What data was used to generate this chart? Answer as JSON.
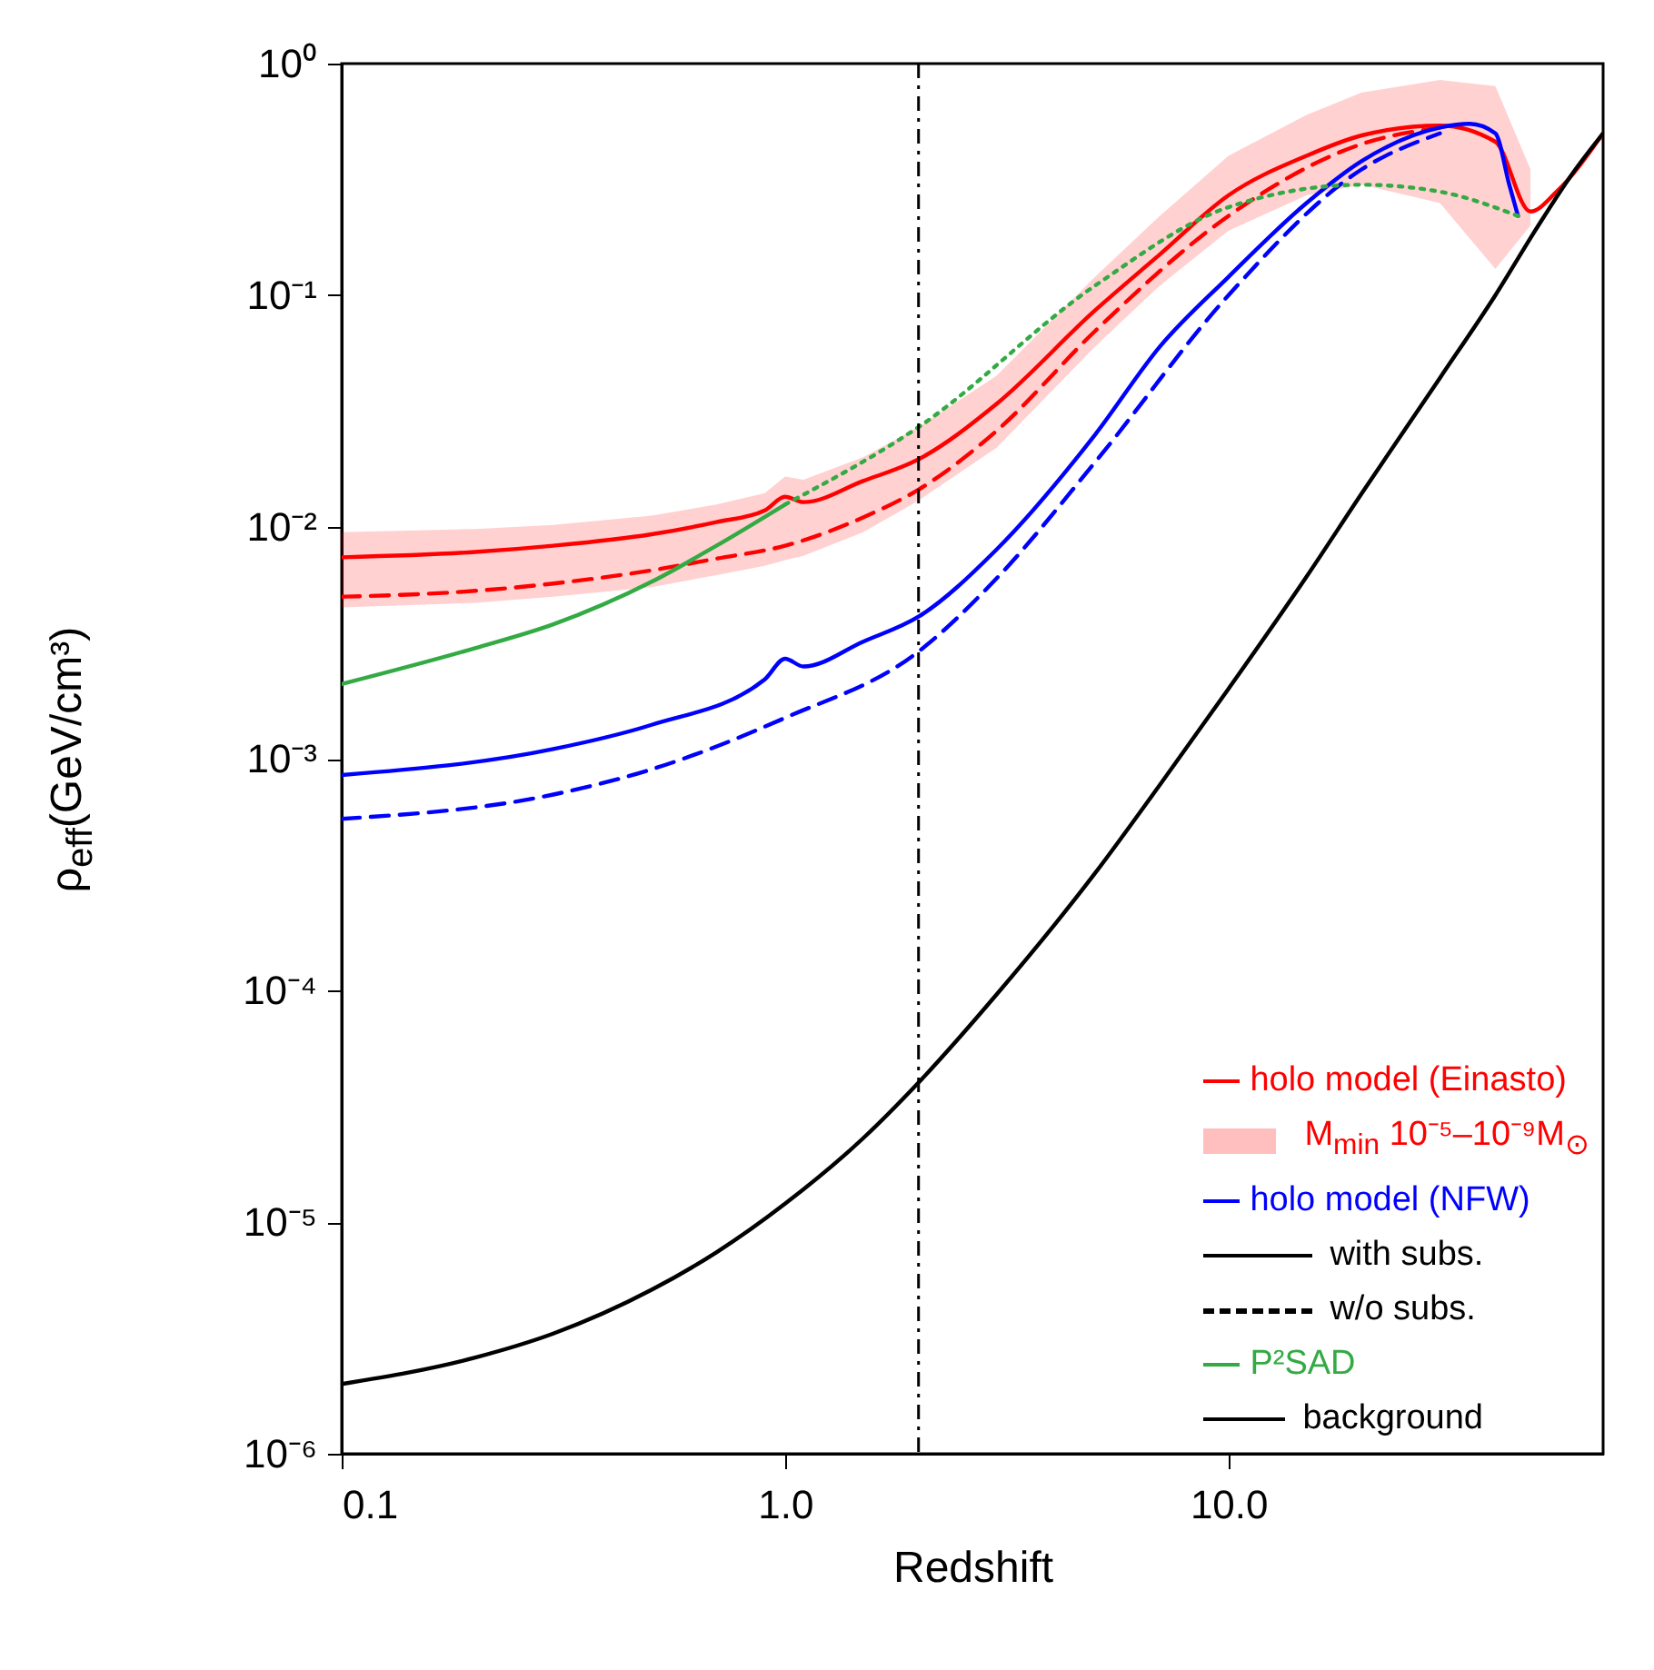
{
  "chart_data": {
    "type": "line",
    "xlabel": "Redshift",
    "ylabel": "ρ$_{eff}$(GeV/cm³)",
    "log": "xy",
    "legend": "bottom right",
    "xlim": [
      0.1,
      70
    ],
    "ylim": [
      1e-06,
      1
    ],
    "xticks": [
      {
        "value": 0.1,
        "label": "0.1"
      },
      {
        "value": 1,
        "label": "1.0"
      },
      {
        "value": 10,
        "label": "10.0"
      }
    ],
    "yticks": [
      {
        "value": 1e-06,
        "label": "10⁻⁶"
      },
      {
        "value": 1e-05,
        "label": "10⁻⁵"
      },
      {
        "value": 0.0001,
        "label": "10⁻⁴"
      },
      {
        "value": 0.001,
        "label": "10⁻³"
      },
      {
        "value": 0.01,
        "label": "10⁻²"
      },
      {
        "value": 0.1,
        "label": "10⁻¹"
      },
      {
        "value": 1,
        "label": "10⁰"
      }
    ],
    "ref_lines": [
      {
        "axis": "x",
        "value": 2,
        "line_style": "dashdot"
      }
    ],
    "annotations": [
      "M$_{min}$ 10⁻⁵–10⁻⁹M$_{⊙}$",
      "with subs.",
      "w/o subs."
    ],
    "series": [
      {
        "name": "holo model (Einasto)",
        "color": "#ff0000",
        "line_style": "solid",
        "x": [
          0.1,
          0.2,
          0.3,
          0.5,
          0.7,
          0.9,
          1.0,
          1.1,
          1.5,
          2,
          3,
          5,
          7,
          10,
          15,
          20,
          30,
          40,
          48,
          55,
          70
        ],
        "values": [
          0.0074,
          0.0078,
          0.0083,
          0.0093,
          0.0105,
          0.0118,
          0.0135,
          0.0128,
          0.0158,
          0.0196,
          0.034,
          0.086,
          0.15,
          0.27,
          0.4,
          0.49,
          0.54,
          0.46,
          0.23,
          0.28,
          0.5
        ],
        "lower": [
          0.0045,
          0.0047,
          0.005,
          0.0055,
          0.0062,
          0.0068,
          0.0072,
          0.0075,
          0.0095,
          0.013,
          0.022,
          0.06,
          0.11,
          0.19,
          0.27,
          0.3,
          0.25,
          0.13,
          0.2,
          null,
          null
        ],
        "upper": [
          0.0095,
          0.0098,
          0.0102,
          0.0112,
          0.0125,
          0.014,
          0.0165,
          0.016,
          0.02,
          0.027,
          0.045,
          0.12,
          0.22,
          0.4,
          0.6,
          0.75,
          0.85,
          0.8,
          0.35,
          null,
          null
        ]
      },
      {
        "color": "#ff0000",
        "line_style": "dashed",
        "x": [
          0.1,
          0.2,
          0.3,
          0.5,
          0.7,
          1,
          1.5,
          2,
          3,
          5,
          10,
          20,
          30
        ],
        "values": [
          0.005,
          0.0053,
          0.0057,
          0.0065,
          0.0073,
          0.0083,
          0.011,
          0.0145,
          0.026,
          0.07,
          0.22,
          0.45,
          0.53
        ]
      },
      {
        "name": "holo model (NFW)",
        "color": "#0000ff",
        "line_style": "solid",
        "x": [
          0.1,
          0.3,
          0.5,
          0.9,
          1.0,
          1.1,
          1.5,
          2,
          3,
          5,
          7,
          10,
          15,
          20,
          30,
          35,
          40,
          43,
          45
        ],
        "values": [
          0.00085,
          0.0011,
          0.0014,
          0.0022,
          0.0027,
          0.0025,
          0.0032,
          0.0041,
          0.008,
          0.025,
          0.06,
          0.12,
          0.25,
          0.38,
          0.53,
          0.55,
          0.5,
          0.3,
          0.22
        ]
      },
      {
        "color": "#0000ff",
        "line_style": "dashed",
        "x": [
          0.1,
          0.3,
          0.5,
          1,
          2,
          3,
          5,
          10,
          20,
          30
        ],
        "values": [
          0.00055,
          0.0007,
          0.0009,
          0.0015,
          0.0029,
          0.006,
          0.019,
          0.1,
          0.35,
          0.5
        ]
      },
      {
        "name": "P²SAD",
        "color": "#33aa44",
        "line_style": "solid",
        "x": [
          0.1,
          0.2,
          0.3,
          0.5,
          0.7,
          1
        ],
        "values": [
          0.0021,
          0.003,
          0.0038,
          0.0058,
          0.0083,
          0.0125
        ]
      },
      {
        "color": "#33aa44",
        "line_style": "dotted",
        "x": [
          1,
          2,
          5,
          10,
          20,
          30,
          45
        ],
        "values": [
          0.0125,
          0.027,
          0.11,
          0.24,
          0.3,
          0.28,
          0.22
        ]
      },
      {
        "name": "background",
        "color": "#000000",
        "line_style": "solid",
        "x": [
          0.1,
          0.2,
          0.3,
          0.5,
          0.7,
          1,
          1.5,
          2,
          3,
          5,
          7,
          10,
          15,
          20,
          30,
          40,
          50,
          60,
          70
        ],
        "values": [
          2e-06,
          2.6e-06,
          3.3e-06,
          5.1e-06,
          7.4e-06,
          1.2e-05,
          2.3e-05,
          4e-05,
          9.6e-05,
          0.00032,
          0.00077,
          0.002,
          0.0061,
          0.014,
          0.044,
          0.1,
          0.2,
          0.34,
          0.5
        ]
      }
    ]
  }
}
